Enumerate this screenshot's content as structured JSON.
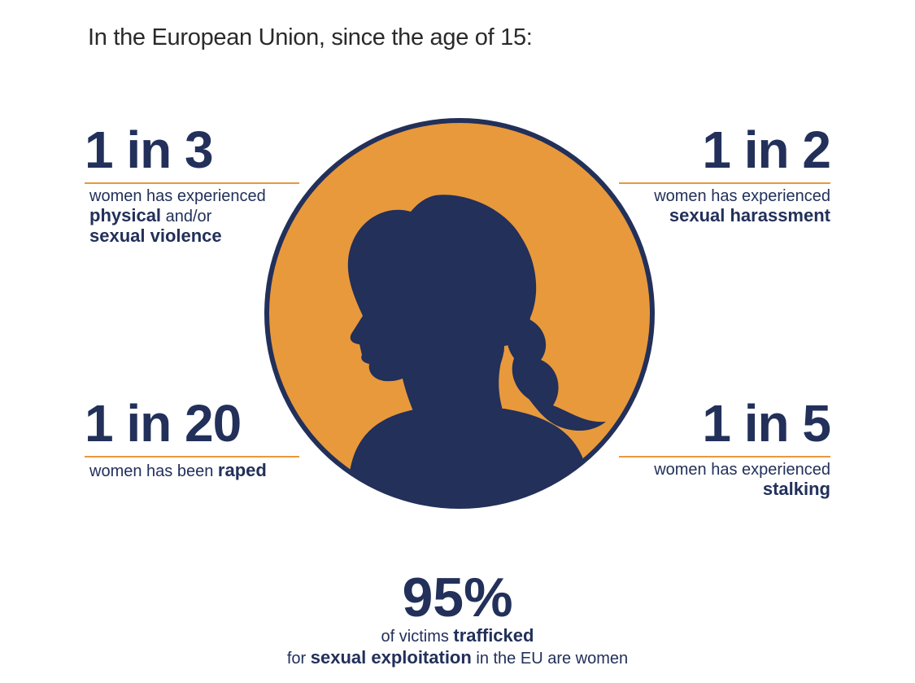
{
  "heading": "In the European Union, since the age of 15:",
  "colors": {
    "navy": "#22305a",
    "orange": "#e8993c"
  },
  "icons": {
    "portrait": "woman-silhouette-icon"
  },
  "stats": {
    "one_in_three": {
      "value": "1 in 3",
      "line1": "women has experienced",
      "bold1": "physical",
      "after1": " and/or",
      "bold2": "sexual violence"
    },
    "one_in_two": {
      "value": "1 in 2",
      "line1": "women has experienced",
      "bold1": "sexual harassment"
    },
    "one_in_twenty": {
      "value": "1 in 20",
      "line1": "women has been ",
      "bold1": "raped"
    },
    "one_in_five": {
      "value": "1 in 5",
      "line1": "women has experienced",
      "bold1": "stalking"
    }
  },
  "bottom": {
    "value": "95%",
    "line1_pre": "of victims ",
    "line1_bold": "trafficked",
    "line2_pre": "for ",
    "line2_bold": "sexual exploitation",
    "line2_post": " in the EU are women"
  }
}
